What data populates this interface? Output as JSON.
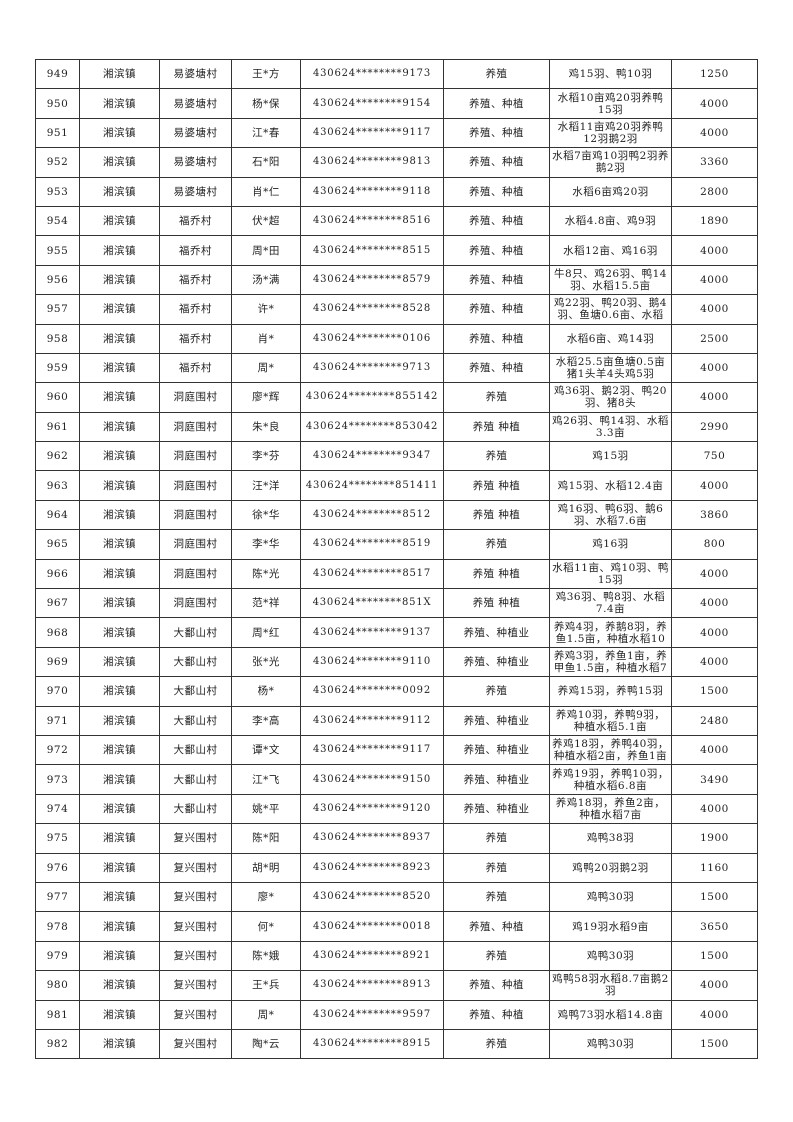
{
  "table": {
    "rows": [
      [
        "949",
        "湘滨镇",
        "易婆塘村",
        "王*方",
        "430624********9173",
        "养殖",
        "鸡15羽、鸭10羽",
        "1250"
      ],
      [
        "950",
        "湘滨镇",
        "易婆塘村",
        "杨*保",
        "430624********9154",
        "养殖、种植",
        "水稻10亩鸡20羽养鸭15羽",
        "4000"
      ],
      [
        "951",
        "湘滨镇",
        "易婆塘村",
        "江*春",
        "430624********9117",
        "养殖、种植",
        "水稻11亩鸡20羽养鸭12羽鹅2羽",
        "4000"
      ],
      [
        "952",
        "湘滨镇",
        "易婆塘村",
        "石*阳",
        "430624********9813",
        "养殖、种植",
        "水稻7亩鸡10羽鸭2羽养鹅2羽",
        "3360"
      ],
      [
        "953",
        "湘滨镇",
        "易婆塘村",
        "肖*仁",
        "430624********9118",
        "养殖、种植",
        "水稻6亩鸡20羽",
        "2800"
      ],
      [
        "954",
        "湘滨镇",
        "福乔村",
        "伏*超",
        "430624********8516",
        "养殖、种植",
        "水稻4.8亩、鸡9羽",
        "1890"
      ],
      [
        "955",
        "湘滨镇",
        "福乔村",
        "周*田",
        "430624********8515",
        "养殖、种植",
        "水稻12亩、鸡16羽",
        "4000"
      ],
      [
        "956",
        "湘滨镇",
        "福乔村",
        "汤*满",
        "430624********8579",
        "养殖、种植",
        "牛8只、鸡26羽、鸭14羽、水稻15.5亩",
        "4000"
      ],
      [
        "957",
        "湘滨镇",
        "福乔村",
        "许*",
        "430624********8528",
        "养殖、种植",
        "鸡22羽、鸭20羽、鹅4羽、鱼塘0.6亩、水稻",
        "4000"
      ],
      [
        "958",
        "湘滨镇",
        "福乔村",
        "肖*",
        "430624********0106",
        "养殖、种植",
        "水稻6亩、鸡14羽",
        "2500"
      ],
      [
        "959",
        "湘滨镇",
        "福乔村",
        "周*",
        "430624********9713",
        "养殖、种植",
        "水稻25.5亩鱼塘0.5亩猪1头羊4头鸡5羽",
        "4000"
      ],
      [
        "960",
        "湘滨镇",
        "洞庭围村",
        "廖*辉",
        "430624********855142",
        "养殖",
        "鸡36羽、鹅2羽、鸭20羽、猪8头",
        "4000"
      ],
      [
        "961",
        "湘滨镇",
        "洞庭围村",
        "朱*良",
        "430624********853042",
        "养殖 种植",
        "鸡26羽、鸭14羽、水稻3.3亩",
        "2990"
      ],
      [
        "962",
        "湘滨镇",
        "洞庭围村",
        "李*芬",
        "430624********9347",
        "养殖",
        "鸡15羽",
        "750"
      ],
      [
        "963",
        "湘滨镇",
        "洞庭围村",
        "汪*洋",
        "430624********851411",
        "养殖 种植",
        "鸡15羽、水稻12.4亩",
        "4000"
      ],
      [
        "964",
        "湘滨镇",
        "洞庭围村",
        "徐*华",
        "430624********8512",
        "养殖 种植",
        "鸡16羽、鸭6羽、鹅6羽、水稻7.6亩",
        "3860"
      ],
      [
        "965",
        "湘滨镇",
        "洞庭围村",
        "李*华",
        "430624********8519",
        "养殖",
        "鸡16羽",
        "800"
      ],
      [
        "966",
        "湘滨镇",
        "洞庭围村",
        "陈*光",
        "430624********8517",
        "养殖 种植",
        "水稻11亩、鸡10羽、鸭15羽",
        "4000"
      ],
      [
        "967",
        "湘滨镇",
        "洞庭围村",
        "范*祥",
        "430624********851X",
        "养殖 种植",
        "鸡36羽、鸭8羽、水稻7.4亩",
        "4000"
      ],
      [
        "968",
        "湘滨镇",
        "大鄱山村",
        "周*红",
        "430624********9137",
        "养殖、种植业",
        "养鸡4羽，养鹅8羽，养鱼1.5亩，种植水稻10",
        "4000"
      ],
      [
        "969",
        "湘滨镇",
        "大鄱山村",
        "张*光",
        "430624********9110",
        "养殖、种植业",
        "养鸡3羽，养鱼1亩，养甲鱼1.5亩，种植水稻7",
        "4000"
      ],
      [
        "970",
        "湘滨镇",
        "大鄱山村",
        "杨*",
        "430624********0092",
        "养殖",
        "养鸡15羽，养鸭15羽",
        "1500"
      ],
      [
        "971",
        "湘滨镇",
        "大鄱山村",
        "李*高",
        "430624********9112",
        "养殖、种植业",
        "养鸡10羽，养鸭9羽，种植水稻5.1亩",
        "2480"
      ],
      [
        "972",
        "湘滨镇",
        "大鄱山村",
        "谭*文",
        "430624********9117",
        "养殖、种植业",
        "养鸡18羽，养鸭40羽，种植水稻2亩，养鱼1亩",
        "4000"
      ],
      [
        "973",
        "湘滨镇",
        "大鄱山村",
        "江*飞",
        "430624********9150",
        "养殖、种植业",
        "养鸡19羽，养鸭10羽，种植水稻6.8亩",
        "3490"
      ],
      [
        "974",
        "湘滨镇",
        "大鄱山村",
        "姚*平",
        "430624********9120",
        "养殖、种植业",
        "养鸡18羽，养鱼2亩，种植水稻7亩",
        "4000"
      ],
      [
        "975",
        "湘滨镇",
        "复兴围村",
        "陈*阳",
        "430624********8937",
        "养殖",
        "鸡鸭38羽",
        "1900"
      ],
      [
        "976",
        "湘滨镇",
        "复兴围村",
        "胡*明",
        "430624********8923",
        "养殖",
        "鸡鸭20羽鹅2羽",
        "1160"
      ],
      [
        "977",
        "湘滨镇",
        "复兴围村",
        "廖*",
        "430624********8520",
        "养殖",
        "鸡鸭30羽",
        "1500"
      ],
      [
        "978",
        "湘滨镇",
        "复兴围村",
        "何*",
        "430624********0018",
        "养殖、种植",
        "鸡19羽水稻9亩",
        "3650"
      ],
      [
        "979",
        "湘滨镇",
        "复兴围村",
        "陈*娥",
        "430624********8921",
        "养殖",
        "鸡鸭30羽",
        "1500"
      ],
      [
        "980",
        "湘滨镇",
        "复兴围村",
        "王*兵",
        "430624********8913",
        "养殖、种植",
        "鸡鸭58羽水稻8.7亩鹅2羽",
        "4000"
      ],
      [
        "981",
        "湘滨镇",
        "复兴围村",
        "周*",
        "430624********9597",
        "养殖、种植",
        "鸡鸭73羽水稻14.8亩",
        "4000"
      ],
      [
        "982",
        "湘滨镇",
        "复兴围村",
        "陶*云",
        "430624********8915",
        "养殖",
        "鸡鸭30羽",
        "1500"
      ]
    ]
  }
}
